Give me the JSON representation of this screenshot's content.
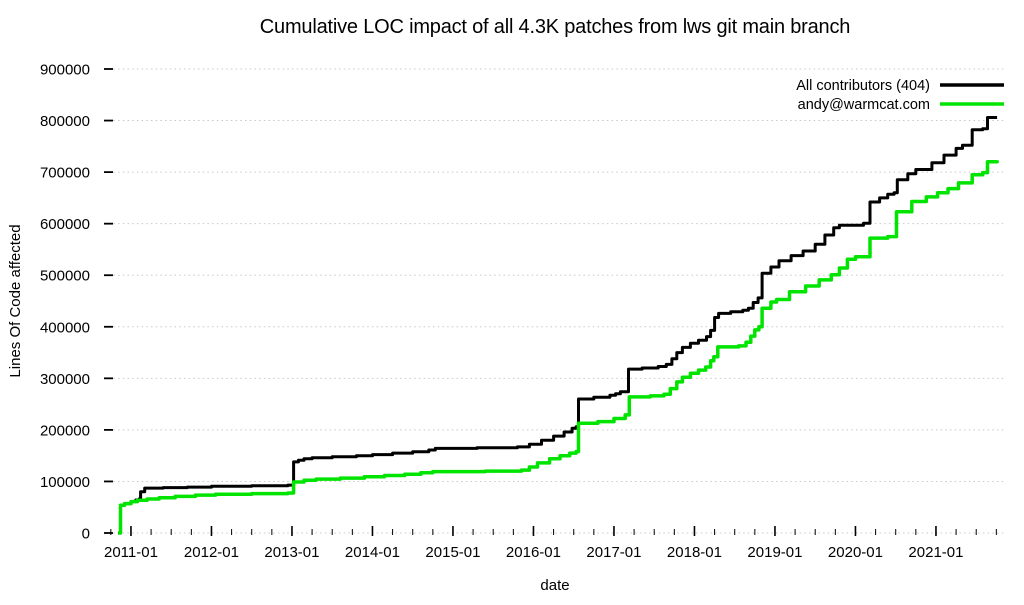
{
  "chart_data": {
    "type": "line",
    "title": "Cumulative LOC impact of all 4.3K patches from lws git main branch",
    "xlabel": "date",
    "ylabel": "Lines Of Code affected",
    "grid": "horizontal-dotted",
    "grid_color": "#c8c8c8",
    "background": "#ffffff",
    "legend_position": "top-right-inside",
    "step_interpolation": "step-after",
    "xlim": [
      2010.665,
      2021.87
    ],
    "ylim": [
      0,
      900000
    ],
    "y_ticks": [
      0,
      100000,
      200000,
      300000,
      400000,
      500000,
      600000,
      700000,
      800000,
      900000
    ],
    "x_major_ticks": [
      2011,
      2012,
      2013,
      2014,
      2015,
      2016,
      2017,
      2018,
      2019,
      2020,
      2021
    ],
    "x_tick_labels": [
      "2011-01",
      "2012-01",
      "2013-01",
      "2014-01",
      "2015-01",
      "2016-01",
      "2017-01",
      "2018-01",
      "2019-01",
      "2020-01",
      "2021-01"
    ],
    "x_minor_tick_step": 0.25,
    "series": [
      {
        "name": "All contributors (404)",
        "color": "#000000",
        "width": 3,
        "points": [
          [
            2010.84,
            0
          ],
          [
            2010.87,
            54000
          ],
          [
            2010.92,
            57000
          ],
          [
            2011.0,
            61000
          ],
          [
            2011.06,
            64000
          ],
          [
            2011.1,
            66000
          ],
          [
            2011.12,
            80000
          ],
          [
            2011.17,
            87000
          ],
          [
            2011.4,
            88000
          ],
          [
            2011.7,
            89000
          ],
          [
            2012.0,
            90500
          ],
          [
            2012.5,
            91500
          ],
          [
            2012.95,
            93000
          ],
          [
            2013.02,
            138000
          ],
          [
            2013.08,
            141000
          ],
          [
            2013.15,
            144000
          ],
          [
            2013.25,
            146000
          ],
          [
            2013.5,
            148000
          ],
          [
            2013.8,
            150000
          ],
          [
            2014.0,
            152000
          ],
          [
            2014.25,
            155000
          ],
          [
            2014.5,
            157500
          ],
          [
            2014.7,
            161000
          ],
          [
            2014.78,
            164000
          ],
          [
            2015.3,
            165500
          ],
          [
            2015.8,
            167000
          ],
          [
            2015.95,
            172000
          ],
          [
            2016.1,
            180000
          ],
          [
            2016.25,
            188000
          ],
          [
            2016.38,
            196000
          ],
          [
            2016.48,
            203000
          ],
          [
            2016.53,
            206000
          ],
          [
            2016.56,
            260000
          ],
          [
            2016.75,
            263500
          ],
          [
            2016.95,
            267000
          ],
          [
            2017.02,
            270000
          ],
          [
            2017.08,
            274000
          ],
          [
            2017.18,
            318000
          ],
          [
            2017.35,
            320000
          ],
          [
            2017.55,
            323000
          ],
          [
            2017.65,
            327000
          ],
          [
            2017.72,
            338000
          ],
          [
            2017.78,
            350000
          ],
          [
            2017.85,
            360000
          ],
          [
            2017.95,
            368000
          ],
          [
            2018.05,
            374000
          ],
          [
            2018.15,
            381000
          ],
          [
            2018.2,
            393000
          ],
          [
            2018.25,
            418000
          ],
          [
            2018.3,
            426000
          ],
          [
            2018.45,
            429000
          ],
          [
            2018.6,
            432000
          ],
          [
            2018.67,
            436000
          ],
          [
            2018.73,
            447000
          ],
          [
            2018.79,
            456000
          ],
          [
            2018.84,
            504000
          ],
          [
            2018.95,
            516000
          ],
          [
            2019.05,
            528000
          ],
          [
            2019.2,
            538000
          ],
          [
            2019.35,
            547000
          ],
          [
            2019.5,
            560000
          ],
          [
            2019.62,
            578000
          ],
          [
            2019.73,
            592000
          ],
          [
            2019.8,
            597000
          ],
          [
            2020.1,
            601000
          ],
          [
            2020.18,
            642000
          ],
          [
            2020.3,
            650000
          ],
          [
            2020.4,
            657000
          ],
          [
            2020.48,
            660000
          ],
          [
            2020.52,
            685000
          ],
          [
            2020.65,
            697000
          ],
          [
            2020.75,
            705000
          ],
          [
            2020.95,
            718000
          ],
          [
            2021.1,
            733000
          ],
          [
            2021.25,
            746000
          ],
          [
            2021.33,
            752000
          ],
          [
            2021.45,
            782000
          ],
          [
            2021.58,
            784000
          ],
          [
            2021.64,
            806000
          ],
          [
            2021.76,
            806000
          ]
        ]
      },
      {
        "name": "andy@warmcat.com",
        "color": "#00e400",
        "width": 3.5,
        "points": [
          [
            2010.84,
            0
          ],
          [
            2010.87,
            54000
          ],
          [
            2010.92,
            57000
          ],
          [
            2011.0,
            61000
          ],
          [
            2011.08,
            63500
          ],
          [
            2011.2,
            66000
          ],
          [
            2011.35,
            68500
          ],
          [
            2011.55,
            71000
          ],
          [
            2011.8,
            73500
          ],
          [
            2012.05,
            75000
          ],
          [
            2012.5,
            76500
          ],
          [
            2012.95,
            77500
          ],
          [
            2013.02,
            99000
          ],
          [
            2013.15,
            102500
          ],
          [
            2013.3,
            104500
          ],
          [
            2013.6,
            106500
          ],
          [
            2013.9,
            109000
          ],
          [
            2014.15,
            111500
          ],
          [
            2014.4,
            114000
          ],
          [
            2014.6,
            117000
          ],
          [
            2014.75,
            119000
          ],
          [
            2015.4,
            120000
          ],
          [
            2015.85,
            122000
          ],
          [
            2015.95,
            128000
          ],
          [
            2016.05,
            136000
          ],
          [
            2016.2,
            144000
          ],
          [
            2016.33,
            150000
          ],
          [
            2016.45,
            155000
          ],
          [
            2016.53,
            158000
          ],
          [
            2016.56,
            213000
          ],
          [
            2016.8,
            216000
          ],
          [
            2017.0,
            222000
          ],
          [
            2017.14,
            229000
          ],
          [
            2017.19,
            264000
          ],
          [
            2017.45,
            266000
          ],
          [
            2017.62,
            269000
          ],
          [
            2017.7,
            280000
          ],
          [
            2017.78,
            293000
          ],
          [
            2017.85,
            302000
          ],
          [
            2017.95,
            310000
          ],
          [
            2018.05,
            316000
          ],
          [
            2018.14,
            322000
          ],
          [
            2018.2,
            334000
          ],
          [
            2018.24,
            342000
          ],
          [
            2018.29,
            361000
          ],
          [
            2018.55,
            363000
          ],
          [
            2018.64,
            370000
          ],
          [
            2018.7,
            382000
          ],
          [
            2018.75,
            394000
          ],
          [
            2018.8,
            400000
          ],
          [
            2018.84,
            436000
          ],
          [
            2018.95,
            448000
          ],
          [
            2019.02,
            453000
          ],
          [
            2019.18,
            468000
          ],
          [
            2019.38,
            479000
          ],
          [
            2019.55,
            491000
          ],
          [
            2019.7,
            501000
          ],
          [
            2019.8,
            514000
          ],
          [
            2019.9,
            531000
          ],
          [
            2020.0,
            536000
          ],
          [
            2020.18,
            572000
          ],
          [
            2020.4,
            575000
          ],
          [
            2020.51,
            623000
          ],
          [
            2020.7,
            643000
          ],
          [
            2020.88,
            652000
          ],
          [
            2021.02,
            660000
          ],
          [
            2021.15,
            668000
          ],
          [
            2021.28,
            679000
          ],
          [
            2021.45,
            695000
          ],
          [
            2021.58,
            699000
          ],
          [
            2021.64,
            720000
          ],
          [
            2021.76,
            723000
          ]
        ]
      }
    ]
  }
}
